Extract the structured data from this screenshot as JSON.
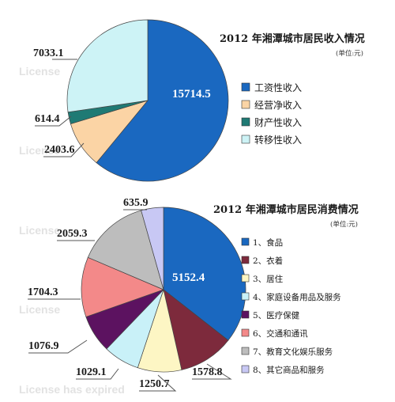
{
  "watermarks": [
    "License",
    "License",
    "License",
    "License",
    "License has expired"
  ],
  "chart_data": [
    {
      "type": "pie",
      "title": "2012 年湘潭城市居民收入情况",
      "unit": "(单位:元)",
      "legend_position": "right",
      "slices": [
        {
          "label": "工资性收入",
          "value": 15714.5,
          "value_text": "15714.5",
          "color": "#1a68c0"
        },
        {
          "label": "经营净收入",
          "value": 2403.6,
          "value_text": "2403.6",
          "color": "#fbd4a5"
        },
        {
          "label": "财产性收入",
          "value": 614.4,
          "value_text": "614.4",
          "color": "#1f7a74"
        },
        {
          "label": "转移性收入",
          "value": 7033.1,
          "value_text": "7033.1",
          "color": "#cdf3f6"
        }
      ]
    },
    {
      "type": "pie",
      "title": "2012 年湘潭城市居民消费情况",
      "unit": "(单位:元)",
      "legend_position": "right",
      "slices": [
        {
          "label": "1、食品",
          "value": 5152.4,
          "value_text": "5152.4",
          "color": "#1a68c0"
        },
        {
          "label": "2、衣着",
          "value": 1578.8,
          "value_text": "1578.8",
          "color": "#7d2a3c"
        },
        {
          "label": "3、居住",
          "value": 1250.7,
          "value_text": "1250.7",
          "color": "#fdf6c4"
        },
        {
          "label": "4、家庭设备用品及服务",
          "value": 1029.1,
          "value_text": "1029.1",
          "color": "#c9f1f8"
        },
        {
          "label": "5、医疗保健",
          "value": 1076.9,
          "value_text": "1076.9",
          "color": "#5c1260"
        },
        {
          "label": "6、交通和通讯",
          "value": 1704.3,
          "value_text": "1704.3",
          "color": "#f38989"
        },
        {
          "label": "7、教育文化娱乐服务",
          "value": 2059.3,
          "value_text": "2059.3",
          "color": "#bdbdbd"
        },
        {
          "label": "8、其它商品和服务",
          "value": 635.9,
          "value_text": "635.9",
          "color": "#c8c8f4"
        }
      ]
    }
  ]
}
